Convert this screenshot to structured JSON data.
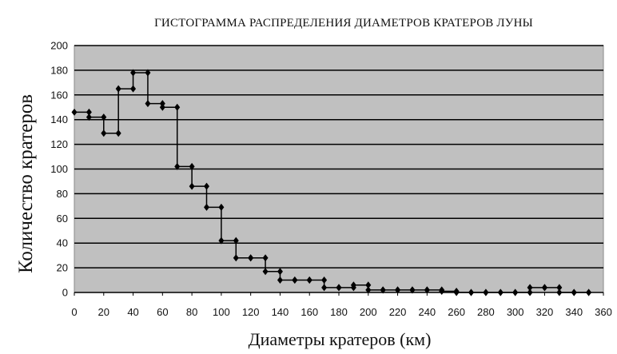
{
  "chart_data": {
    "type": "line",
    "title": "ГИСТОГРАММА РАСПРЕДЕЛЕНИЯ ДИАМЕТРОВ КРАТЕРОВ ЛУНЫ",
    "xlabel": "Диаметры кратеров (км)",
    "ylabel": "Количество кратеров",
    "xlim": [
      0,
      360
    ],
    "ylim": [
      0,
      200
    ],
    "x_ticks": [
      "0",
      "20",
      "40",
      "60",
      "80",
      "100",
      "120",
      "140",
      "160",
      "180",
      "200",
      "220",
      "240",
      "260",
      "280",
      "300",
      "320",
      "340",
      "360"
    ],
    "y_ticks": [
      "0",
      "20",
      "40",
      "60",
      "80",
      "100",
      "120",
      "140",
      "160",
      "180",
      "200"
    ],
    "grid": "horizontal",
    "style": "step",
    "colors": {
      "plot_bg": "#c0c0c0",
      "line": "#000000",
      "grid": "#000000"
    },
    "series": [
      {
        "x": [
          0,
          10,
          20,
          30,
          40,
          50,
          60,
          70,
          80,
          90,
          100,
          110,
          120,
          130,
          140,
          150,
          160,
          170,
          180,
          190,
          200,
          210,
          220,
          230,
          240,
          250,
          260,
          270,
          280,
          290,
          300,
          310,
          320,
          330,
          340,
          350
        ],
        "values": [
          146,
          142,
          129,
          165,
          178,
          153,
          150,
          102,
          86,
          69,
          42,
          28,
          28,
          17,
          10,
          10,
          10,
          4,
          4,
          6,
          2,
          2,
          2,
          2,
          2,
          1,
          0,
          0,
          0,
          0,
          0,
          4,
          4,
          0,
          0,
          0
        ]
      }
    ]
  }
}
